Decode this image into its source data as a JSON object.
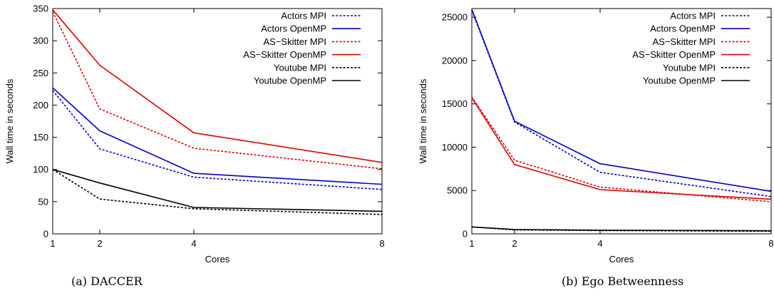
{
  "chart_data": [
    {
      "type": "line",
      "caption": "(a) DACCER",
      "xlabel": "Cores",
      "ylabel": "Wall time in seconds",
      "x": [
        1,
        2,
        4,
        8
      ],
      "x_ticks": [
        "1",
        "2",
        "4",
        "8"
      ],
      "ylim": [
        0,
        350
      ],
      "y_ticks": [
        "0",
        "50",
        "100",
        "150",
        "200",
        "250",
        "300",
        "350"
      ],
      "y_tick_values": [
        0,
        50,
        100,
        150,
        200,
        250,
        300,
        350
      ],
      "legend_position": "top-right",
      "series": [
        {
          "name": "Actors MPI",
          "color": "#0000cc",
          "dashed": true,
          "values": [
            223,
            132,
            88,
            69
          ]
        },
        {
          "name": "Actors OpenMP",
          "color": "#0000cc",
          "dashed": false,
          "values": [
            227,
            160,
            94,
            77
          ]
        },
        {
          "name": "AS−Skitter MPI",
          "color": "#e00000",
          "dashed": true,
          "values": [
            345,
            194,
            133,
            101
          ]
        },
        {
          "name": "AS−Skitter OpenMP",
          "color": "#e00000",
          "dashed": false,
          "values": [
            348,
            262,
            157,
            111
          ]
        },
        {
          "name": "Youtube MPI",
          "color": "#000000",
          "dashed": true,
          "values": [
            100,
            54,
            39,
            30
          ]
        },
        {
          "name": "Youtube OpenMP",
          "color": "#000000",
          "dashed": false,
          "values": [
            100,
            79,
            41,
            35
          ]
        }
      ]
    },
    {
      "type": "line",
      "caption": "(b) Ego Betweenness",
      "xlabel": "Cores",
      "ylabel": "Wall time in seconds",
      "x": [
        1,
        2,
        4,
        8
      ],
      "x_ticks": [
        "1",
        "2",
        "4",
        "8"
      ],
      "ylim": [
        0,
        26000
      ],
      "y_ticks": [
        "0",
        "5000",
        "10000",
        "15000",
        "20000",
        "25000"
      ],
      "y_tick_values": [
        0,
        5000,
        10000,
        15000,
        20000,
        25000
      ],
      "legend_position": "top-right",
      "series": [
        {
          "name": "Actors MPI",
          "color": "#0000cc",
          "dashed": true,
          "values": [
            25800,
            12900,
            7100,
            4300
          ]
        },
        {
          "name": "Actors OpenMP",
          "color": "#0000cc",
          "dashed": false,
          "values": [
            25900,
            13000,
            8100,
            4900
          ]
        },
        {
          "name": "AS−Skitter MPI",
          "color": "#e00000",
          "dashed": true,
          "values": [
            15800,
            8500,
            5400,
            3700
          ]
        },
        {
          "name": "AS−Skitter OpenMP",
          "color": "#e00000",
          "dashed": false,
          "values": [
            15700,
            8000,
            5100,
            4000
          ]
        },
        {
          "name": "Youtube MPI",
          "color": "#000000",
          "dashed": true,
          "values": [
            800,
            450,
            380,
            300
          ]
        },
        {
          "name": "Youtube OpenMP",
          "color": "#000000",
          "dashed": false,
          "values": [
            800,
            500,
            420,
            350
          ]
        }
      ]
    }
  ]
}
